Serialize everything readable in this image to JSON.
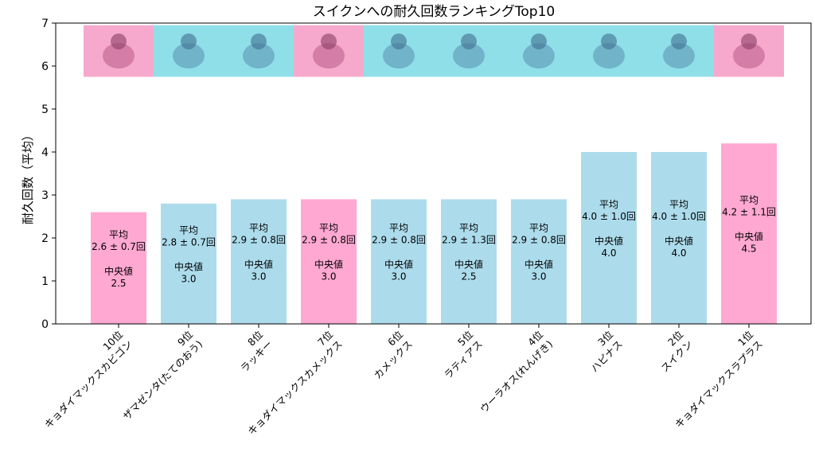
{
  "chart_data": {
    "type": "bar",
    "title": "スイクンへの耐久回数ランキングTop10",
    "xlabel": "",
    "ylabel": "耐久回数（平均）",
    "ylim": [
      0,
      7
    ],
    "yticks": [
      0,
      1,
      2,
      3,
      4,
      5,
      6,
      7
    ],
    "grid": false,
    "legend": "none",
    "colors": {
      "pink": "#ffa8d2",
      "blue": "#acdcec"
    },
    "bars": [
      {
        "rank": "10位",
        "name": "キョダイマックスカビゴン",
        "value": 2.6,
        "mean_label": "平均",
        "mean_text": "2.6 ± 0.7回",
        "median_label": "中央値",
        "median_text": "2.5",
        "color": "pink",
        "icon": "gigantamax-snorlax-icon",
        "icon_bg": "pink"
      },
      {
        "rank": "9位",
        "name": "ザマゼンタ(たてのおう)",
        "value": 2.8,
        "mean_label": "平均",
        "mean_text": "2.8 ± 0.7回",
        "median_label": "中央値",
        "median_text": "3.0",
        "color": "blue",
        "icon": "zamazenta-icon",
        "icon_bg": "blue"
      },
      {
        "rank": "8位",
        "name": "ラッキー",
        "value": 2.9,
        "mean_label": "平均",
        "mean_text": "2.9 ± 0.8回",
        "median_label": "中央値",
        "median_text": "3.0",
        "color": "blue",
        "icon": "chansey-icon",
        "icon_bg": "blue"
      },
      {
        "rank": "7位",
        "name": "キョダイマックスカメックス",
        "value": 2.9,
        "mean_label": "平均",
        "mean_text": "2.9 ± 0.8回",
        "median_label": "中央値",
        "median_text": "3.0",
        "color": "pink",
        "icon": "gigantamax-blastoise-icon",
        "icon_bg": "pink"
      },
      {
        "rank": "6位",
        "name": "カメックス",
        "value": 2.9,
        "mean_label": "平均",
        "mean_text": "2.9 ± 0.8回",
        "median_label": "中央値",
        "median_text": "3.0",
        "color": "blue",
        "icon": "blastoise-icon",
        "icon_bg": "blue"
      },
      {
        "rank": "5位",
        "name": "ラティアス",
        "value": 2.9,
        "mean_label": "平均",
        "mean_text": "2.9 ± 1.3回",
        "median_label": "中央値",
        "median_text": "2.5",
        "color": "blue",
        "icon": "latias-icon",
        "icon_bg": "blue"
      },
      {
        "rank": "4位",
        "name": "ウーラオス(れんげき)",
        "value": 2.9,
        "mean_label": "平均",
        "mean_text": "2.9 ± 0.8回",
        "median_label": "中央値",
        "median_text": "3.0",
        "color": "blue",
        "icon": "urshifu-icon",
        "icon_bg": "blue"
      },
      {
        "rank": "3位",
        "name": "ハピナス",
        "value": 4.0,
        "mean_label": "平均",
        "mean_text": "4.0 ± 1.0回",
        "median_label": "中央値",
        "median_text": "4.0",
        "color": "blue",
        "icon": "blissey-icon",
        "icon_bg": "blue"
      },
      {
        "rank": "2位",
        "name": "スイクン",
        "value": 4.0,
        "mean_label": "平均",
        "mean_text": "4.0 ± 1.0回",
        "median_label": "中央値",
        "median_text": "4.0",
        "color": "blue",
        "icon": "suicune-icon",
        "icon_bg": "blue"
      },
      {
        "rank": "1位",
        "name": "キョダイマックスラプラス",
        "value": 4.2,
        "mean_label": "平均",
        "mean_text": "4.2 ± 1.1回",
        "median_label": "中央値",
        "median_text": "4.5",
        "color": "pink",
        "icon": "gigantamax-lapras-icon",
        "icon_bg": "pink"
      }
    ],
    "icon_band": {
      "y_range": [
        5.75,
        6.95
      ]
    },
    "icon_bg_colors": {
      "pink": "#f6a9cc",
      "blue": "#8fdfe9"
    }
  }
}
